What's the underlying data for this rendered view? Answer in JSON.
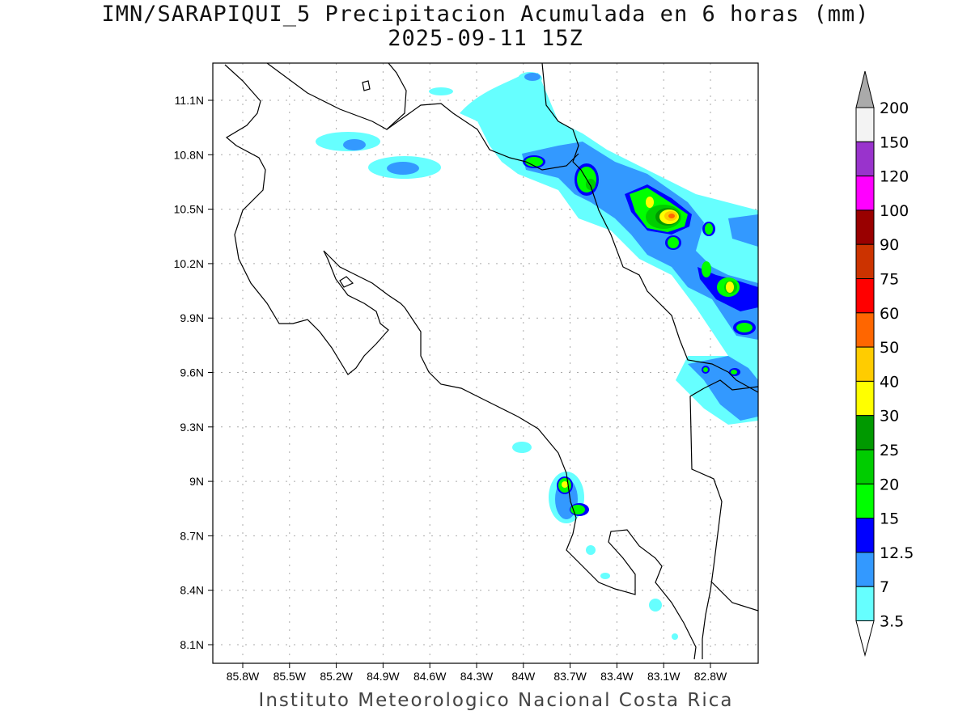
{
  "title": "IMN/SARAPIQUI_5 Precipitacion Acumulada en 6 horas (mm)",
  "subtitle": "2025-09-11 15Z",
  "footer": "Instituto Meteorologico Nacional Costa Rica",
  "lat_labels": [
    "11.1N",
    "10.8N",
    "10.5N",
    "10.2N",
    "9.9N",
    "9.6N",
    "9.3N",
    "9N",
    "8.7N",
    "8.4N",
    "8.1N"
  ],
  "lon_labels": [
    "85.8W",
    "85.5W",
    "85.2W",
    "84.9W",
    "84.6W",
    "84.3W",
    "84W",
    "83.7W",
    "83.4W",
    "83.1W",
    "82.8W"
  ],
  "legend": {
    "levels": [
      "200",
      "150",
      "120",
      "100",
      "90",
      "75",
      "60",
      "50",
      "40",
      "30",
      "25",
      "20",
      "15",
      "12.5",
      "7",
      "3.5"
    ],
    "colors": [
      "#f3f3f3",
      "#9933cc",
      "#ff00ff",
      "#990000",
      "#cc3300",
      "#ff0000",
      "#ff6600",
      "#ffcc00",
      "#ffff00",
      "#009900",
      "#00cc00",
      "#00ff00",
      "#0000ff",
      "#3399ff",
      "#66ffff"
    ],
    "over_color": "#aaaaaa"
  }
}
